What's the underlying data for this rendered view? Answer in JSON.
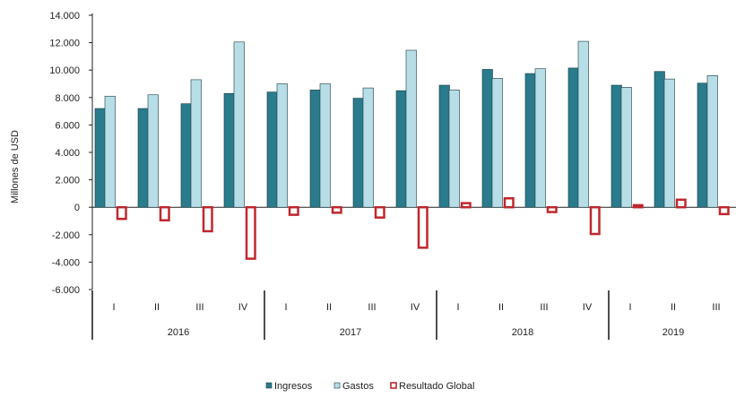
{
  "chart_data": {
    "type": "bar",
    "ylabel": "Millones de USD",
    "ylim": [
      -6000,
      14000
    ],
    "yticks": [
      -6000,
      -4000,
      -2000,
      0,
      2000,
      4000,
      6000,
      8000,
      10000,
      12000,
      14000
    ],
    "ytick_labels": [
      "-6.000",
      "-4.000",
      "-2.000",
      "0",
      "2.000",
      "4.000",
      "6.000",
      "8.000",
      "10.000",
      "12.000",
      "14.000"
    ],
    "quarters": [
      "I",
      "II",
      "III",
      "IV",
      "I",
      "II",
      "III",
      "IV",
      "I",
      "II",
      "III",
      "IV",
      "I",
      "II",
      "III"
    ],
    "years": [
      {
        "label": "2016",
        "count": 4
      },
      {
        "label": "2017",
        "count": 4
      },
      {
        "label": "2018",
        "count": 4
      },
      {
        "label": "2019",
        "count": 3
      }
    ],
    "series": [
      {
        "name": "Ingresos",
        "color": "#2a7b8c",
        "values": [
          7200,
          7200,
          7550,
          8300,
          8400,
          8550,
          7950,
          8500,
          8900,
          10050,
          9750,
          10150,
          8900,
          9900,
          9050
        ]
      },
      {
        "name": "Gastos",
        "color": "#b7dde6",
        "values": [
          8100,
          8200,
          9300,
          12050,
          9000,
          9000,
          8700,
          11450,
          8550,
          9400,
          10100,
          12100,
          8750,
          9350,
          9600
        ]
      },
      {
        "name": "Resultado Global",
        "color": "#c0272d",
        "values": [
          -850,
          -950,
          -1750,
          -3750,
          -550,
          -400,
          -750,
          -2950,
          300,
          650,
          -350,
          -1950,
          150,
          550,
          -500
        ]
      }
    ],
    "legend_position": "bottom-center",
    "grid": false
  }
}
